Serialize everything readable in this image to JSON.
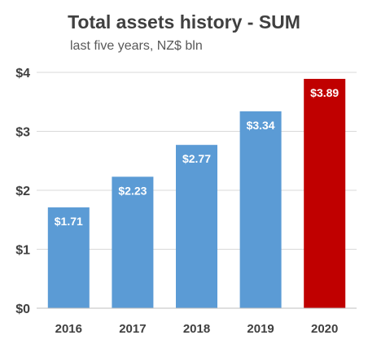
{
  "chart_data": {
    "type": "bar",
    "title": "Total assets history - SUM",
    "subtitle": "last five years, NZ$ bln",
    "categories": [
      "2016",
      "2017",
      "2018",
      "2019",
      "2020"
    ],
    "values": [
      1.71,
      2.23,
      2.77,
      3.34,
      3.89
    ],
    "data_labels": [
      "$1.71",
      "$2.23",
      "$2.77",
      "$3.34",
      "$3.89"
    ],
    "y_ticks": [
      0,
      1,
      2,
      3,
      4
    ],
    "y_tick_labels": [
      "$0",
      "$1",
      "$2",
      "$3",
      "$4"
    ],
    "ylim": [
      0,
      4
    ],
    "grid": true,
    "legend": "none",
    "colors": {
      "default_bar": "#5b9bd5",
      "highlight_bar": "#c00000",
      "gridline": "#d9d9d9"
    },
    "highlight_index": 4
  }
}
